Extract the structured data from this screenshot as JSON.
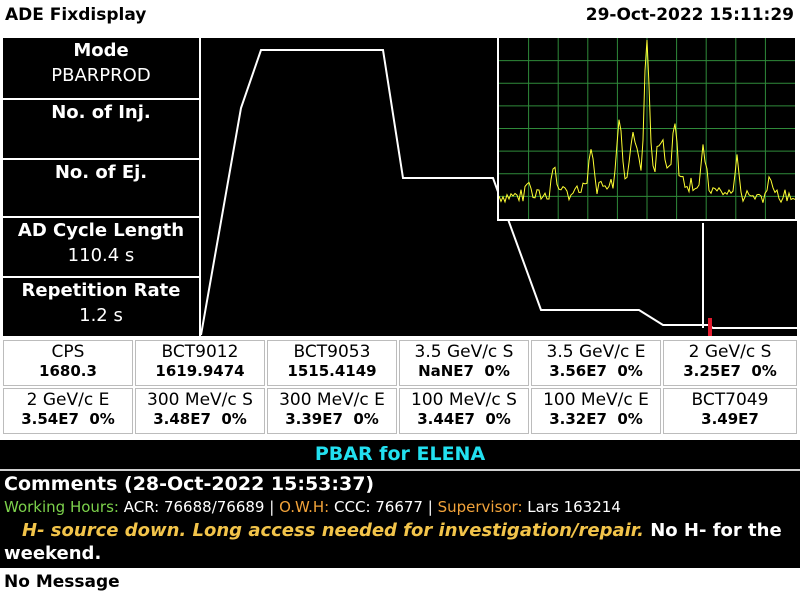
{
  "header": {
    "title": "ADE Fixdisplay",
    "datetime": "29-Oct-2022 15:11:29"
  },
  "info": [
    {
      "label": "Mode",
      "value": "PBARPROD"
    },
    {
      "label": "No. of Inj.",
      "value": ""
    },
    {
      "label": "No. of Ej.",
      "value": ""
    },
    {
      "label": "AD Cycle Length",
      "value": "110.4 s"
    },
    {
      "label": "Repetition Rate",
      "value": "1.2 s"
    }
  ],
  "grid": [
    [
      {
        "name": "CPS",
        "value": "1680.3"
      },
      {
        "name": "BCT9012",
        "value": "1619.9474"
      },
      {
        "name": "BCT9053",
        "value": "1515.4149"
      },
      {
        "name": "3.5 GeV/c S",
        "value": "NaNE7  0%"
      },
      {
        "name": "3.5 GeV/c E",
        "value": "3.56E7  0%"
      },
      {
        "name": "2 GeV/c S",
        "value": "3.25E7  0%"
      }
    ],
    [
      {
        "name": "2 GeV/c E",
        "value": "3.54E7  0%"
      },
      {
        "name": "300 MeV/c S",
        "value": "3.48E7  0%"
      },
      {
        "name": "300 MeV/c E",
        "value": "3.39E7  0%"
      },
      {
        "name": "100 MeV/c S",
        "value": "3.44E7  0%"
      },
      {
        "name": "100 MeV/c E",
        "value": "3.32E7  0%"
      },
      {
        "name": "BCT7049",
        "value": "3.49E7"
      }
    ]
  ],
  "banner": "PBAR for ELENA",
  "comments": {
    "heading": "Comments (28-Oct-2022 15:53:37)",
    "working_hours_label": "Working Hours:",
    "working_hours_value": " ACR: 76688/76689 | ",
    "owh_label": "O.W.H:",
    "owh_value": " CCC: 76677 | ",
    "supervisor_label": "Supervisor:",
    "supervisor_value": " Lars 163214",
    "highlight": "H- source down. Long access needed for investigation/repair.",
    "rest": " No H- for the weekend."
  },
  "footer": "No Message",
  "colors": {
    "banner": "#22e0f0",
    "working_hours": "#7cd14b",
    "labels_orange": "#f2a33a",
    "comment_highlight": "#f2c44a",
    "spectrum_trace": "#ffff33",
    "spectrum_grid": "#2f8a3a",
    "cycle_trace": "#ffffff",
    "marker": "#e21b2e"
  }
}
